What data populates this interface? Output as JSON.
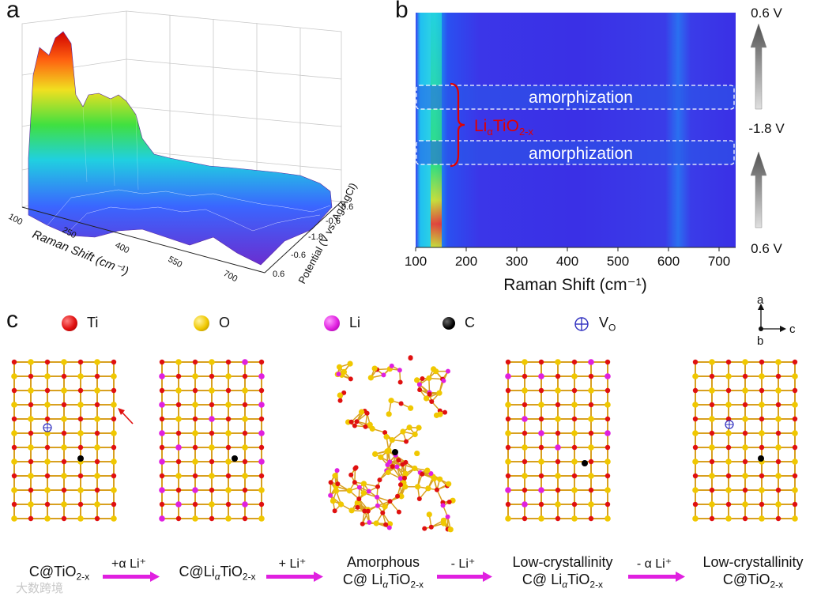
{
  "panels": {
    "a": "a",
    "b": "b",
    "c": "c"
  },
  "panel_a": {
    "xlabel": "Raman Shift (cm⁻¹)",
    "x_ticks": [
      "100",
      "250",
      "400",
      "550",
      "700"
    ],
    "ylabel": "Potential (V vs. Ag/AgCl)",
    "y_ticks": [
      "0.6",
      "-0.6",
      "-1.8",
      "-0.6",
      "0.6"
    ]
  },
  "panel_b": {
    "xlabel": "Raman Shift (cm⁻¹)",
    "x_ticks": [
      "100",
      "200",
      "300",
      "400",
      "500",
      "600",
      "700"
    ],
    "region_labels": [
      "amorphization",
      "amorphization"
    ],
    "phase_label": "LiαTiO2-x",
    "phase_main": "Li",
    "phase_sub1": "α",
    "phase_mid": "TiO",
    "phase_sub2": "2-x",
    "potentials": [
      "0.6 V",
      "-1.8 V",
      "0.6 V"
    ]
  },
  "legend": [
    {
      "symbol": "Ti",
      "color": "#e01010"
    },
    {
      "symbol": "O",
      "color": "#f0c800"
    },
    {
      "symbol": "Li",
      "color": "#e020e0"
    },
    {
      "symbol": "C",
      "color": "#000000"
    },
    {
      "symbol": "V",
      "sub": "O",
      "color": "#3030c0"
    }
  ],
  "axes": {
    "a": "a",
    "b": "b",
    "c": "c"
  },
  "stages": [
    {
      "line1": "C@TiO",
      "sub1": "2-x"
    },
    {
      "line1": "C@Li",
      "sub_a": "α",
      "mid": "TiO",
      "sub1": "2-x"
    },
    {
      "line0": "Amorphous",
      "line1": "C@ Li",
      "sub_a": "α",
      "mid": "TiO",
      "sub1": "2-x"
    },
    {
      "line0": "Low-crystallinity",
      "line1": "C@ Li",
      "sub_a": "α",
      "mid": "TiO",
      "sub1": "2-x"
    },
    {
      "line0": "Low-crystallinity",
      "line1": "C@TiO",
      "sub1": "2-x"
    }
  ],
  "transitions": [
    "+α Li⁺",
    "+ Li⁺",
    "- Li⁺",
    "- α Li⁺"
  ],
  "watermark": "大数跨境"
}
